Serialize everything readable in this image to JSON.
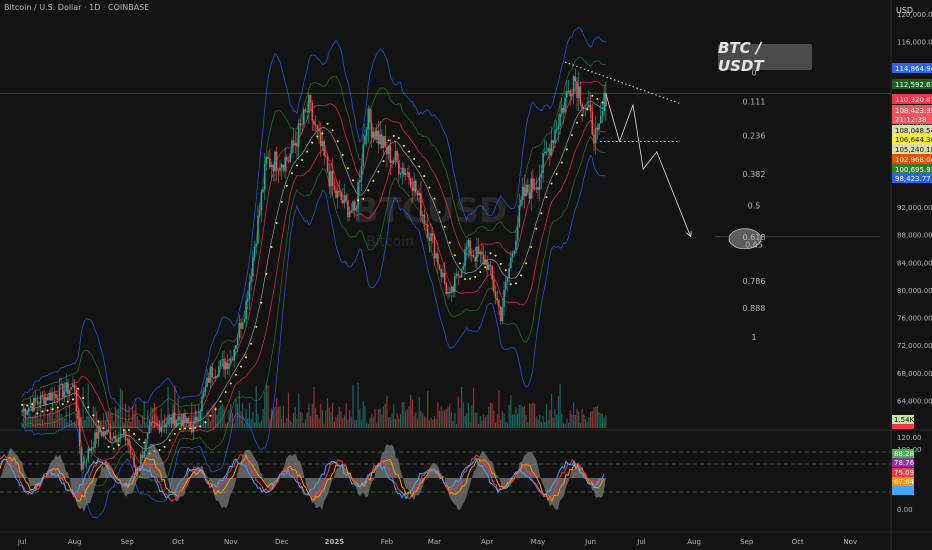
{
  "header": {
    "title": "Bitcoin / U.S. Dollar · 1D · COINBASE"
  },
  "overlay": {
    "pair_badge": "BTC / USDT",
    "watermark_symbol": "BTCUSD",
    "watermark_name": "Bitcoin"
  },
  "price_axis": {
    "currency": "USD",
    "ticks": [
      "120,000.00",
      "116,000.00",
      "112,000.00",
      "108,000.00",
      "104,000.00",
      "100,000.00",
      "96,000.00",
      "92,000.00",
      "88,000.00",
      "84,000.00",
      "80,000.00",
      "76,000.00",
      "72,000.00",
      "68,000.00",
      "64,000.00"
    ],
    "tags": [
      {
        "text": "114,864.94",
        "color": "#2962ff"
      },
      {
        "text": "112,592.61",
        "color": "#1b5e20"
      },
      {
        "text": "110,320.87",
        "color": "#f23645"
      },
      {
        "text": "108,423.99",
        "color": "#f7525f"
      },
      {
        "text": "21:12:38",
        "color": "#f7525f"
      },
      {
        "text": "108,048.54",
        "color": "#dcdcaa"
      },
      {
        "text": "106,644.36",
        "color": "#ffeb3b"
      },
      {
        "text": "105,240.18",
        "color": "#dcdcaa"
      },
      {
        "text": "102,968.04",
        "color": "#e65100"
      },
      {
        "text": "100,695.91",
        "color": "#2e7d32"
      },
      {
        "text": "98,423.77",
        "color": "#2962ff"
      }
    ],
    "volume_tag": "1.54K"
  },
  "oscillator_axis": {
    "ticks": [
      "120.00",
      "100.00",
      "0.00"
    ],
    "tags": [
      {
        "text": "88.28",
        "color": "#4caf50"
      },
      {
        "text": "78.76",
        "color": "#9c27b0"
      },
      {
        "text": "75.09",
        "color": "#f23645"
      },
      {
        "text": "67.64",
        "color": "#ff9800"
      },
      {
        "text": "",
        "color": "#42a5f5"
      }
    ]
  },
  "time_axis": [
    "Jul",
    "Aug",
    "Sep",
    "Oct",
    "Nov",
    "Dec",
    "2025",
    "Feb",
    "Mar",
    "Apr",
    "May",
    "Jun",
    "Jul",
    "Aug",
    "Sep",
    "Oct",
    "Nov"
  ],
  "fib_levels": [
    {
      "label": "0",
      "price": 111500
    },
    {
      "label": "0.111",
      "price": 107300
    },
    {
      "label": "0.236",
      "price": 102400
    },
    {
      "label": "0.382",
      "price": 96800
    },
    {
      "label": "0.5",
      "price": 92200
    },
    {
      "label": "0.618",
      "price": 87700
    },
    {
      "label": "0.65",
      "price": 86600
    },
    {
      "label": "0.786",
      "price": 81300
    },
    {
      "label": "0.888",
      "price": 77400
    },
    {
      "label": "1",
      "price": 73200
    }
  ],
  "chart_data": {
    "type": "line",
    "title": "Bitcoin / U.S. Dollar · 1D · COINBASE",
    "xlabel": "",
    "ylabel": "",
    "x": [
      "2024-07-01",
      "2024-07-15",
      "2024-08-01",
      "2024-08-05",
      "2024-08-15",
      "2024-09-01",
      "2024-09-06",
      "2024-09-15",
      "2024-10-01",
      "2024-10-10",
      "2024-10-20",
      "2024-11-01",
      "2024-11-10",
      "2024-11-22",
      "2024-12-05",
      "2024-12-17",
      "2025-01-01",
      "2025-01-13",
      "2025-01-20",
      "2025-02-01",
      "2025-02-15",
      "2025-03-01",
      "2025-03-10",
      "2025-03-20",
      "2025-04-01",
      "2025-04-09",
      "2025-04-22",
      "2025-05-01",
      "2025-05-12",
      "2025-05-22",
      "2025-06-01",
      "2025-06-05",
      "2025-06-10"
    ],
    "series": [
      {
        "values": [
          62500,
          64500,
          66000,
          54500,
          59500,
          58500,
          53500,
          60000,
          61500,
          60000,
          68000,
          70000,
          78000,
          98500,
          99000,
          106500,
          94000,
          91000,
          105000,
          100000,
          96500,
          86000,
          78500,
          86000,
          84000,
          76500,
          93500,
          96000,
          104000,
          111000,
          104500,
          101500,
          108400
        ]
      }
    ],
    "ylim": [
      60000,
      122000
    ],
    "yticks": [
      120000,
      116000,
      112000,
      108000,
      104000,
      100000,
      96000,
      92000,
      88000,
      84000,
      80000,
      76000,
      72000,
      68000,
      64000
    ],
    "last_price": 108423.99,
    "projection": [
      {
        "x": "2025-06-10",
        "y": 108400
      },
      {
        "x": "2025-06-18",
        "y": 101500
      },
      {
        "x": "2025-06-26",
        "y": 106800
      },
      {
        "x": "2025-07-02",
        "y": 97500
      },
      {
        "x": "2025-07-10",
        "y": 100000
      },
      {
        "x": "2025-07-30",
        "y": 87700
      }
    ],
    "grid": false
  },
  "colors": {
    "background": "#131313",
    "up": "#26a69a",
    "down": "#ef5350",
    "bb_outer": "#2962ff",
    "bb_mid": "#2e7d32",
    "bb_inner": "#f23645",
    "ma": "#ffeb3b",
    "price_line": "#f23645"
  }
}
